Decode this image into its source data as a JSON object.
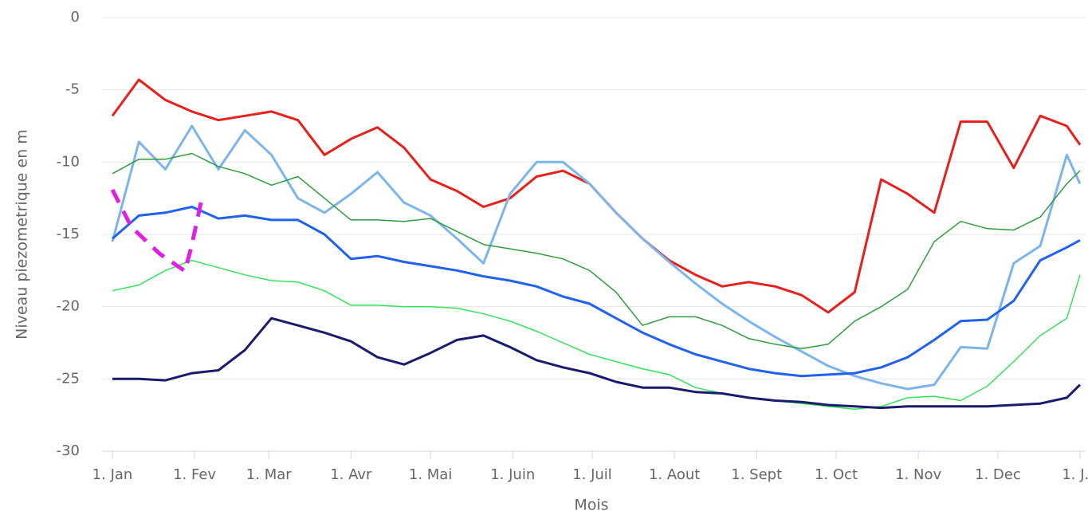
{
  "chart_data": {
    "type": "line",
    "xlabel": "Mois",
    "ylabel": "Niveau piezometrique en m",
    "x": [
      0,
      10,
      20,
      30,
      40,
      50,
      60,
      70,
      80,
      90,
      100,
      110,
      120,
      130,
      140,
      150,
      160,
      170,
      180,
      190,
      200,
      210,
      220,
      230,
      240,
      250,
      260,
      270,
      280,
      290,
      300,
      310,
      320,
      330,
      340,
      350,
      360,
      365
    ],
    "series": [
      {
        "color": "#e8201c",
        "values": [
          -6.8,
          -4.3,
          -5.7,
          -6.5,
          -7.1,
          -6.8,
          -6.5,
          -7.1,
          -9.5,
          -8.4,
          -7.6,
          -9.0,
          -11.2,
          -12.0,
          -13.1,
          -12.5,
          -11.0,
          -10.6,
          -11.5,
          -13.5,
          -15.3,
          -16.8,
          -17.8,
          -18.6,
          -18.3,
          -18.6,
          -19.2,
          -20.4,
          -19.0,
          -11.2,
          -12.2,
          -13.5,
          -7.2,
          -7.2,
          -10.4,
          -6.8,
          -7.5,
          -8.8
        ]
      },
      {
        "color": "#7cb5ec",
        "values": [
          -15.5,
          -8.6,
          -10.5,
          -7.5,
          -10.5,
          -7.8,
          -9.5,
          -12.5,
          -13.5,
          -12.2,
          -10.7,
          -12.8,
          -13.7,
          -15.3,
          -17.0,
          -12.2,
          -10.0,
          -10.0,
          -11.5,
          -13.5,
          -15.3,
          -16.9,
          -18.4,
          -19.8,
          -21.0,
          -22.1,
          -23.1,
          -24.1,
          -24.8,
          -25.3,
          -25.7,
          -25.4,
          -22.8,
          -22.9,
          -17.0,
          -15.8,
          -9.5,
          -11.5
        ]
      },
      {
        "color": "#2e9e3e",
        "values": [
          -10.8,
          -9.8,
          -9.8,
          -9.4,
          -10.3,
          -10.8,
          -11.6,
          -11.0,
          -12.5,
          -14.0,
          -14.0,
          -14.1,
          -13.9,
          -14.8,
          -15.7,
          -16.0,
          -16.3,
          -16.7,
          -17.5,
          -19.0,
          -21.3,
          -20.7,
          -20.7,
          -21.3,
          -22.2,
          -22.6,
          -22.9,
          -22.6,
          -21.0,
          -20.0,
          -18.8,
          -15.5,
          -14.1,
          -14.6,
          -14.7,
          -13.8,
          -11.5,
          -10.6
        ]
      },
      {
        "color": "#2062ee",
        "values": [
          -15.3,
          -13.7,
          -13.5,
          -13.1,
          -13.9,
          -13.7,
          -14.0,
          -14.0,
          -15.0,
          -16.7,
          -16.5,
          -16.9,
          -17.2,
          -17.5,
          -17.9,
          -18.2,
          -18.6,
          -19.3,
          -19.8,
          -20.8,
          -21.8,
          -22.6,
          -23.3,
          -23.8,
          -24.3,
          -24.6,
          -24.8,
          -24.7,
          -24.6,
          -24.2,
          -23.5,
          -22.3,
          -21.0,
          -20.9,
          -19.6,
          -16.8,
          -15.9,
          -15.4
        ]
      },
      {
        "color": "#33e35a",
        "values": [
          -18.9,
          -18.5,
          -17.5,
          -16.8,
          -17.3,
          -17.8,
          -18.2,
          -18.3,
          -18.9,
          -19.9,
          -19.9,
          -20.0,
          -20.0,
          -20.1,
          -20.5,
          -21.0,
          -21.7,
          -22.5,
          -23.3,
          -23.8,
          -24.3,
          -24.7,
          -25.6,
          -26.0,
          -26.3,
          -26.5,
          -26.7,
          -26.9,
          -27.1,
          -26.9,
          -26.3,
          -26.2,
          -26.5,
          -25.5,
          -23.8,
          -22.0,
          -20.8,
          -17.8
        ]
      },
      {
        "color": "#1a1a6e",
        "values": [
          -25.0,
          -25.0,
          -25.1,
          -24.6,
          -24.4,
          -23.0,
          -20.8,
          -21.3,
          -21.8,
          -22.4,
          -23.5,
          -24.0,
          -23.2,
          -22.3,
          -22.0,
          -22.8,
          -23.7,
          -24.2,
          -24.6,
          -25.2,
          -25.6,
          -25.6,
          -25.9,
          -26.0,
          -26.3,
          -26.5,
          -26.6,
          -26.8,
          -26.9,
          -27.0,
          -26.9,
          -26.9,
          -26.9,
          -26.9,
          -26.8,
          -26.7,
          -26.3,
          -25.4
        ]
      }
    ],
    "xlim": [
      0,
      365
    ],
    "ylim": [
      -30,
      0
    ],
    "xticks": [
      {
        "value": 0,
        "label": "1. Jan"
      },
      {
        "value": 31,
        "label": "1. Fev"
      },
      {
        "value": 59,
        "label": "1. Mar"
      },
      {
        "value": 90,
        "label": "1. Avr"
      },
      {
        "value": 120,
        "label": "1. Mai"
      },
      {
        "value": 151,
        "label": "1. Juin"
      },
      {
        "value": 181,
        "label": "1. Juil"
      },
      {
        "value": 212,
        "label": "1. Aout"
      },
      {
        "value": 243,
        "label": "1. Sept"
      },
      {
        "value": 273,
        "label": "1. Oct"
      },
      {
        "value": 304,
        "label": "1. Nov"
      },
      {
        "value": 334,
        "label": "1. Dec"
      },
      {
        "value": 365,
        "label": "1. J..."
      }
    ],
    "yticks": [
      0,
      -5,
      -10,
      -15,
      -20,
      -25,
      -30
    ],
    "grid": true
  }
}
